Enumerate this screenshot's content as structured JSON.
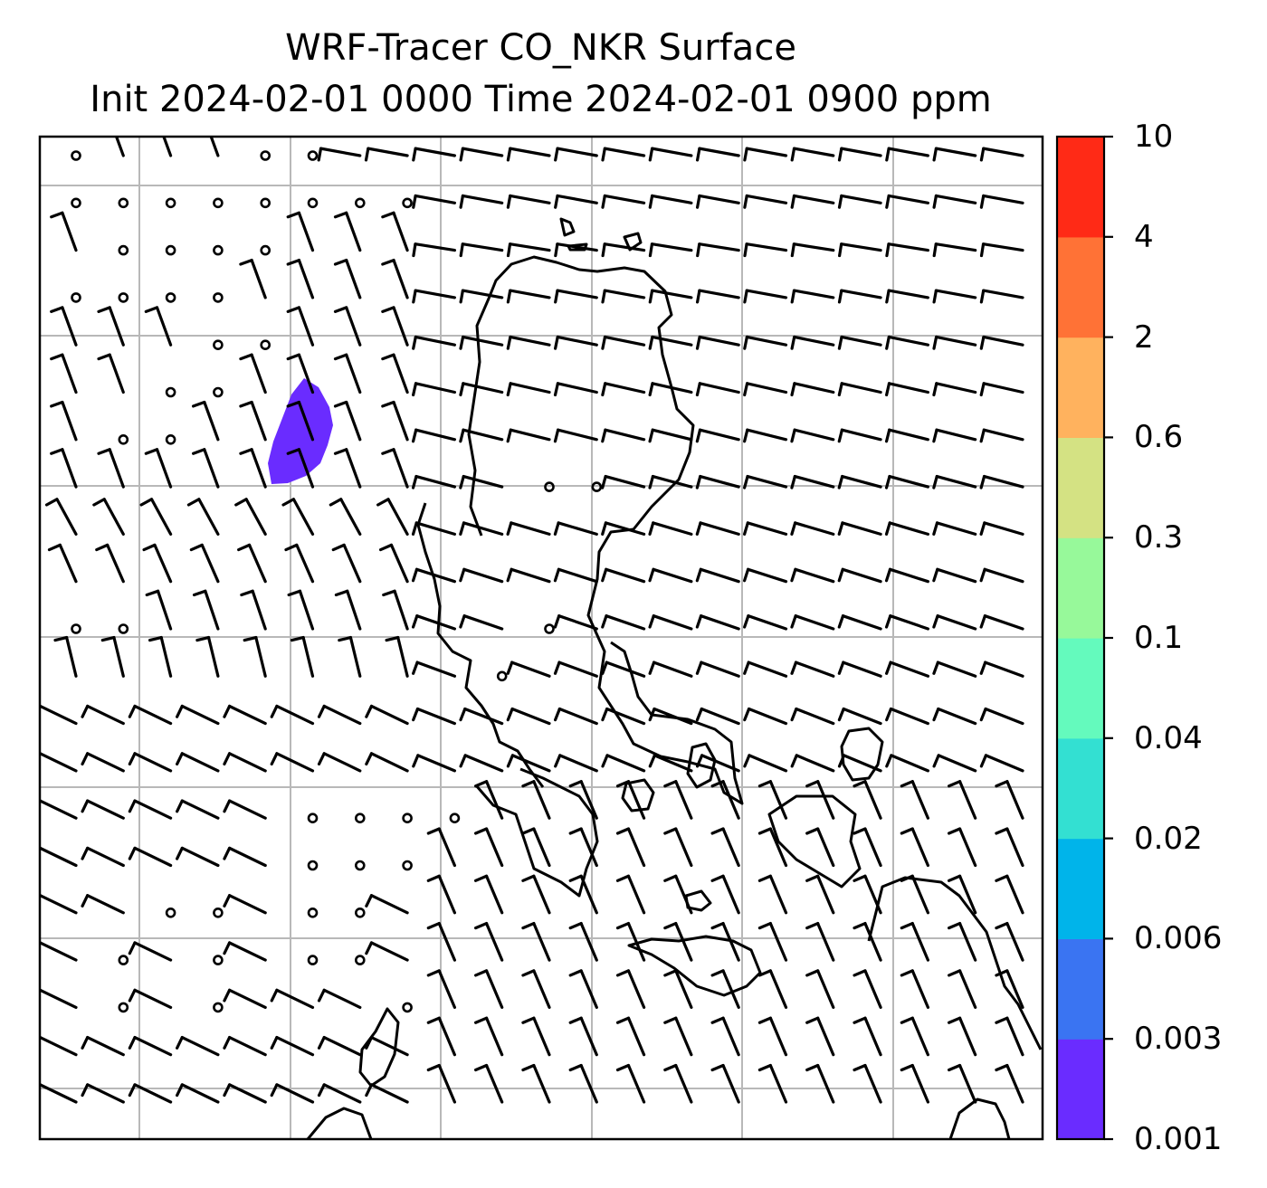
{
  "title": {
    "line1": "WRF-Tracer CO_NKR Surface",
    "line2": "Init 2024-02-01 0000 Time 2024-02-01 0900 ppm"
  },
  "colorbar": {
    "levels": [
      "0.001",
      "0.003",
      "0.006",
      "0.02",
      "0.04",
      "0.1",
      "0.3",
      "0.6",
      "2",
      "4",
      "10"
    ],
    "colors": [
      "#6a2cff",
      "#3a74f2",
      "#00b4ea",
      "#33e0d2",
      "#64fabd",
      "#97f99a",
      "#d4e283",
      "#ffb25e",
      "#ff7236",
      "#ff2a16"
    ]
  },
  "map": {
    "plume_color": "#6a2cff",
    "grid_color": "#b8b8b8",
    "coast_color": "#000000",
    "barb_color": "#000000"
  }
}
